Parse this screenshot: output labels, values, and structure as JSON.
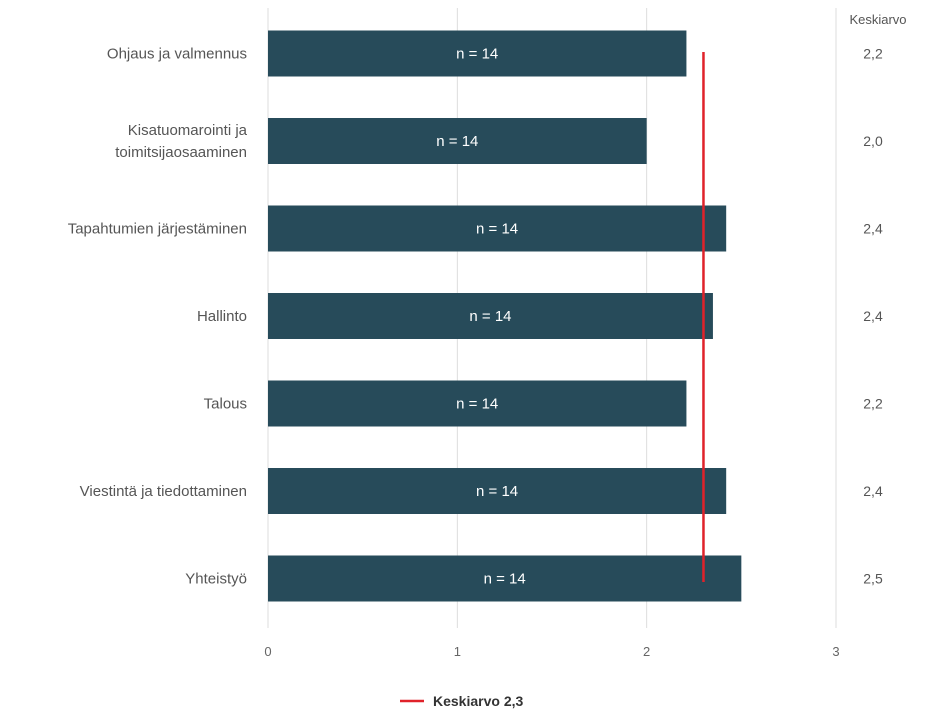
{
  "chart_data": {
    "type": "bar",
    "orientation": "horizontal",
    "categories": [
      [
        "Ohjaus ja valmennus"
      ],
      [
        "Kisatuomarointi ja",
        "toimitsijaosaaminen"
      ],
      [
        "Tapahtumien järjestäminen"
      ],
      [
        "Hallinto"
      ],
      [
        "Talous"
      ],
      [
        "Viestintä ja tiedottaminen"
      ],
      [
        "Yhteistyö"
      ]
    ],
    "values": [
      2.21,
      2.0,
      2.42,
      2.35,
      2.21,
      2.42,
      2.5
    ],
    "n_labels": [
      "n = 14",
      "n = 14",
      "n = 14",
      "n = 14",
      "n = 14",
      "n = 14",
      "n = 14"
    ],
    "average_column_header": "Keskiarvo",
    "average_values": [
      "2,2",
      "2,0",
      "2,4",
      "2,4",
      "2,2",
      "2,4",
      "2,5"
    ],
    "xlim": [
      0,
      3
    ],
    "xticks": [
      0,
      1,
      2,
      3
    ],
    "xtick_labels": [
      "0",
      "1",
      "2",
      "3"
    ],
    "reference_line": {
      "value": 2.3,
      "label": "Keskiarvo 2,3"
    },
    "grid": true,
    "legend_position": "bottom-center",
    "colors": {
      "bar": "#274b5a",
      "reference": "#e0222a",
      "grid": "#dddddd"
    }
  }
}
